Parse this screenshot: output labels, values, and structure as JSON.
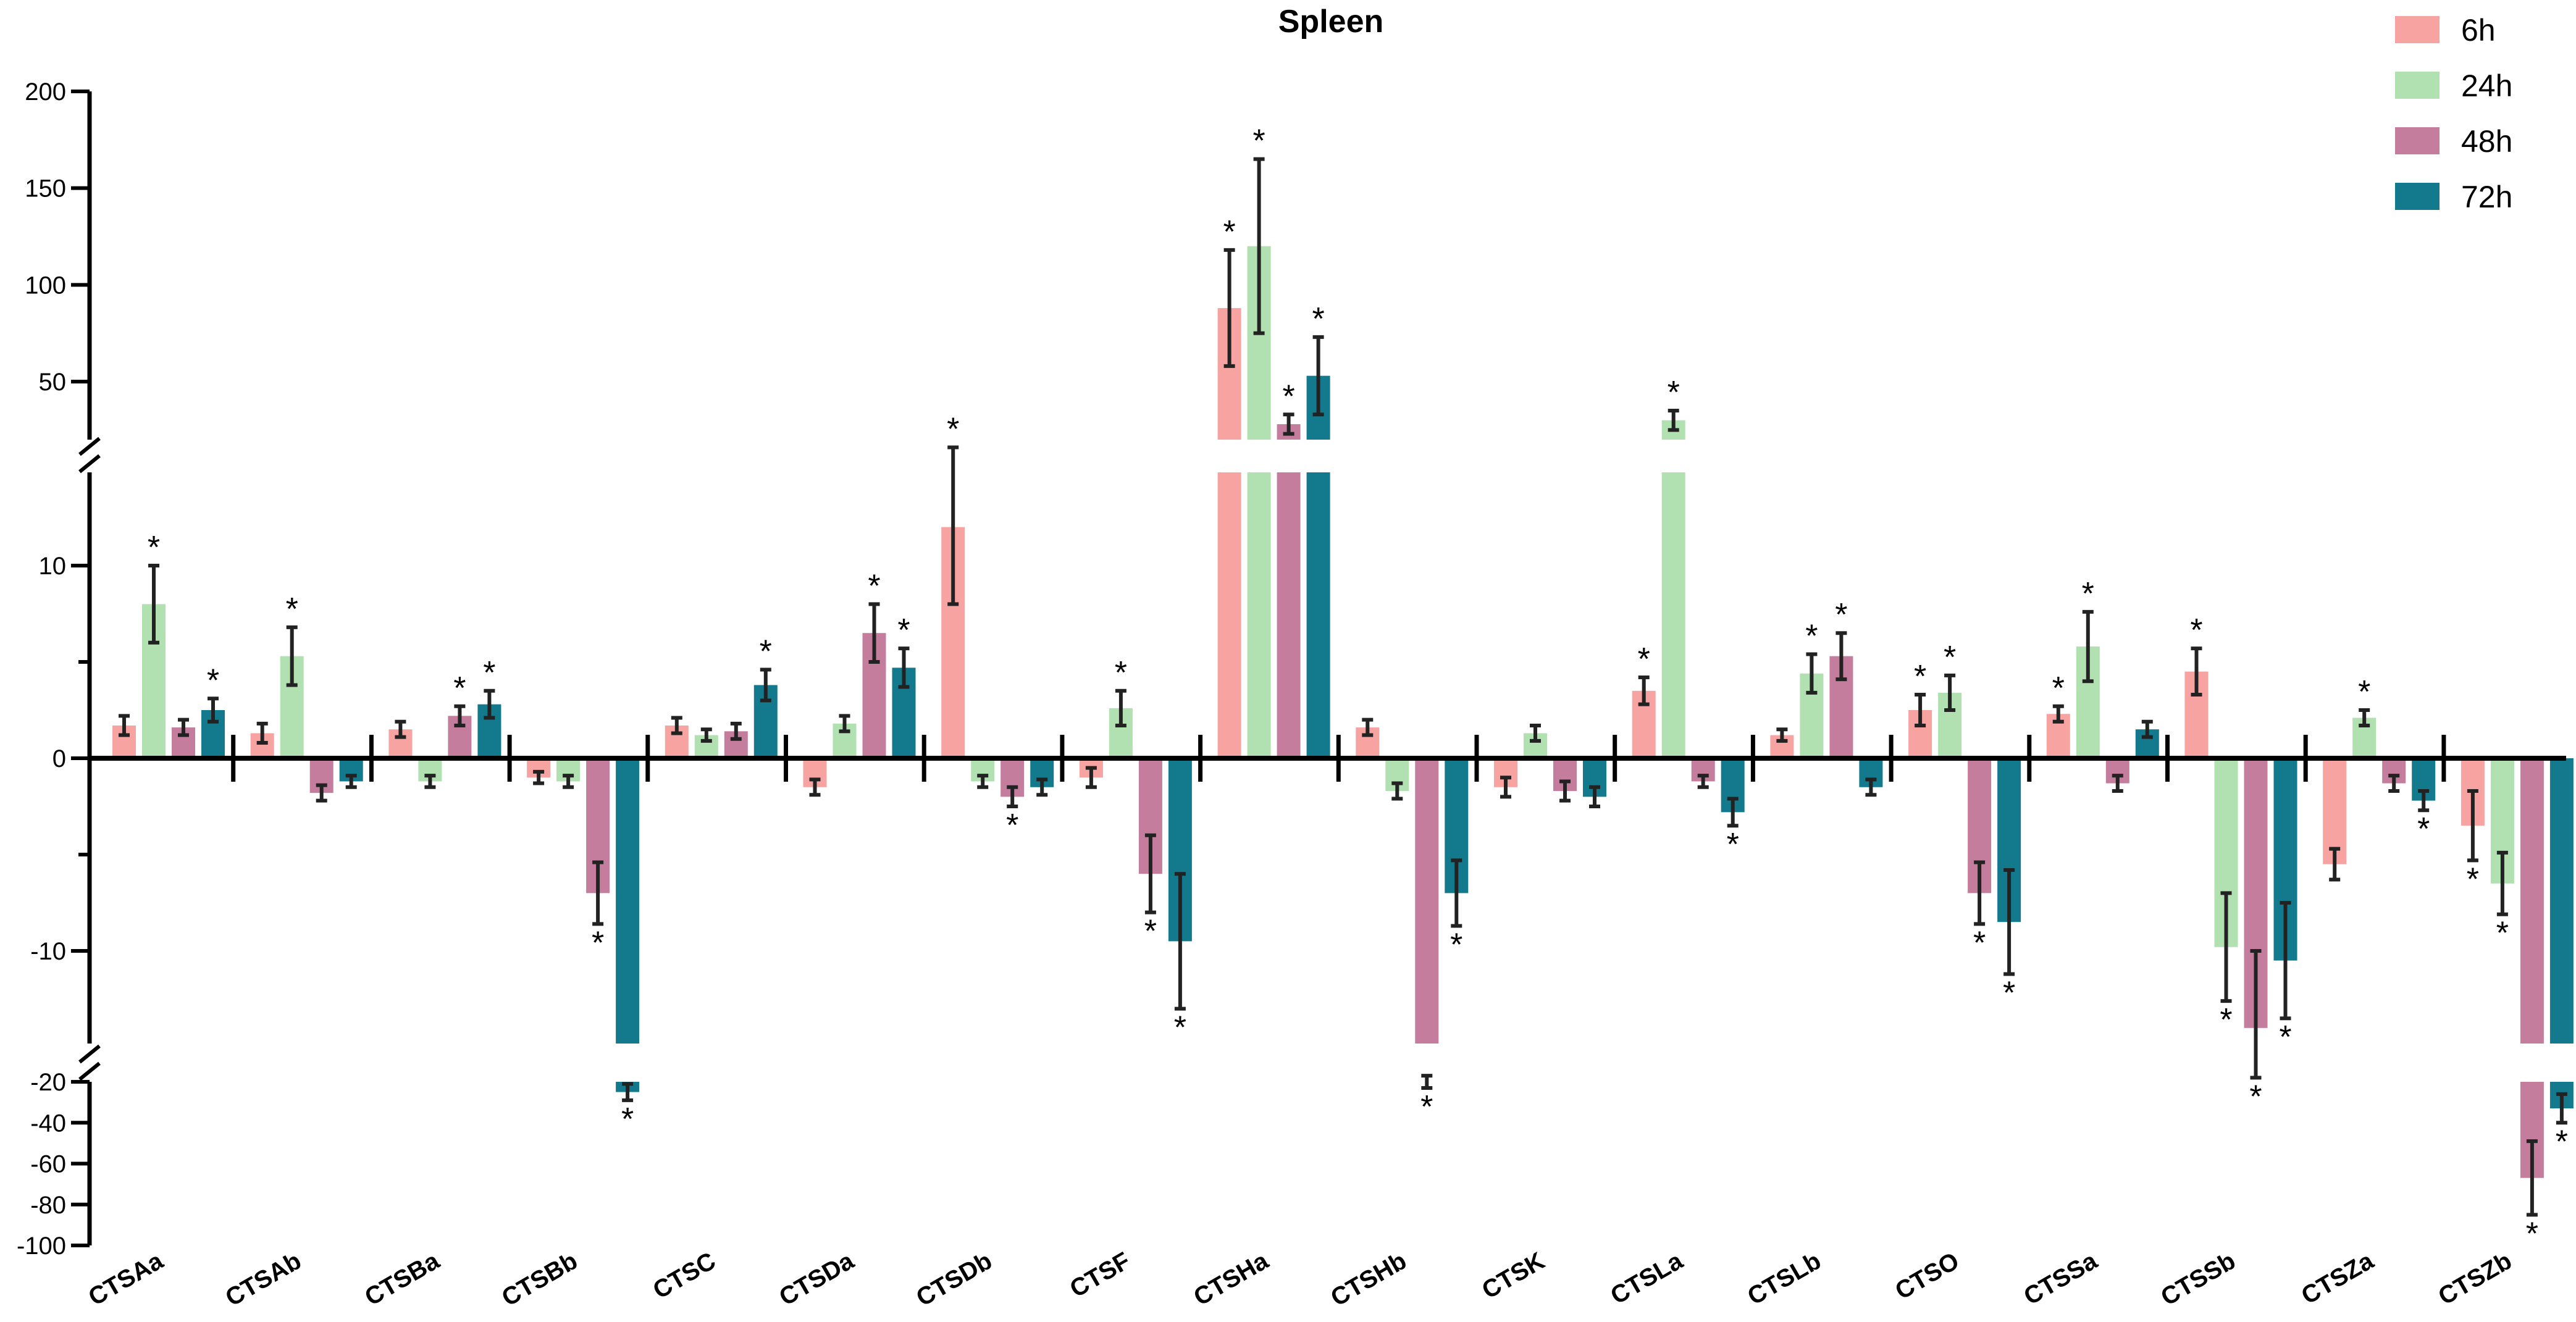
{
  "chart_data": {
    "type": "bar",
    "title": "Spleen",
    "xlabel": "",
    "ylabel": "",
    "legend_position": "top-right",
    "categories": [
      "CTSAa",
      "CTSAb",
      "CTSBa",
      "CTSBb",
      "CTSC",
      "CTSDa",
      "CTSDb",
      "CTSF",
      "CTSHa",
      "CTSHb",
      "CTSK",
      "CTSLa",
      "CTSLb",
      "CTSO",
      "CTSSa",
      "CTSSb",
      "CTSZa",
      "CTSZb"
    ],
    "axis_segments": [
      {
        "range": [
          -100,
          -20
        ],
        "ticks": [
          -20,
          -40,
          -60,
          -80,
          -100
        ]
      },
      {
        "range": [
          -15,
          15
        ],
        "ticks": [
          10,
          0,
          -10
        ],
        "minor_ticks": [
          5,
          -5
        ]
      },
      {
        "range": [
          20,
          200
        ],
        "ticks": [
          200,
          150,
          100,
          50
        ]
      }
    ],
    "series": [
      {
        "name": "6h",
        "color": "#f7a3a1",
        "values": [
          1.7,
          1.3,
          1.5,
          -1.0,
          1.7,
          -1.5,
          12.0,
          -1.0,
          88,
          1.6,
          -1.5,
          3.5,
          1.2,
          2.5,
          2.3,
          4.5,
          -5.5,
          -3.5
        ],
        "errors": [
          0.5,
          0.5,
          0.4,
          0.3,
          0.4,
          0.4,
          4.0,
          0.5,
          30,
          0.4,
          0.5,
          0.7,
          0.3,
          0.8,
          0.4,
          1.2,
          0.8,
          1.8
        ],
        "significant": [
          false,
          false,
          false,
          false,
          false,
          false,
          true,
          false,
          true,
          false,
          false,
          true,
          false,
          true,
          true,
          true,
          false,
          true
        ]
      },
      {
        "name": "24h",
        "color": "#b1e0b1",
        "values": [
          8.0,
          5.3,
          -1.2,
          -1.2,
          1.2,
          1.8,
          -1.2,
          2.6,
          120,
          -1.7,
          1.3,
          30,
          4.4,
          3.4,
          5.8,
          -9.8,
          2.1,
          -6.5
        ],
        "errors": [
          2.0,
          1.5,
          0.3,
          0.3,
          0.3,
          0.4,
          0.3,
          0.9,
          45,
          0.4,
          0.4,
          5,
          1.0,
          0.9,
          1.8,
          2.8,
          0.4,
          1.6
        ],
        "significant": [
          true,
          true,
          false,
          false,
          false,
          false,
          false,
          true,
          true,
          false,
          false,
          true,
          true,
          true,
          true,
          true,
          true,
          true
        ]
      },
      {
        "name": "48h",
        "color": "#c57d9d",
        "values": [
          1.6,
          -1.8,
          2.2,
          -7.0,
          1.4,
          6.5,
          -2.0,
          -6.0,
          28,
          -20,
          -1.7,
          -1.2,
          5.3,
          -7.0,
          -1.3,
          -14.0,
          -1.3,
          -67
        ],
        "errors": [
          0.4,
          0.4,
          0.5,
          1.6,
          0.4,
          1.5,
          0.5,
          2.0,
          5,
          3,
          0.5,
          0.3,
          1.2,
          1.6,
          0.4,
          4.0,
          0.4,
          18
        ],
        "significant": [
          false,
          false,
          true,
          true,
          false,
          true,
          true,
          true,
          true,
          true,
          false,
          false,
          true,
          true,
          false,
          true,
          false,
          true
        ]
      },
      {
        "name": "72h",
        "color": "#137a8e",
        "values": [
          2.5,
          -1.2,
          2.8,
          -25,
          3.8,
          4.7,
          -1.5,
          -9.5,
          53,
          -7.0,
          -2.0,
          -2.8,
          -1.5,
          -8.5,
          1.5,
          -10.5,
          -2.2,
          -33
        ],
        "errors": [
          0.6,
          0.3,
          0.7,
          4,
          0.8,
          1.0,
          0.4,
          3.5,
          20,
          1.7,
          0.5,
          0.7,
          0.4,
          2.7,
          0.4,
          3.0,
          0.5,
          7
        ],
        "significant": [
          true,
          false,
          true,
          true,
          true,
          true,
          false,
          true,
          true,
          true,
          false,
          true,
          false,
          true,
          false,
          true,
          true,
          true
        ]
      }
    ]
  }
}
